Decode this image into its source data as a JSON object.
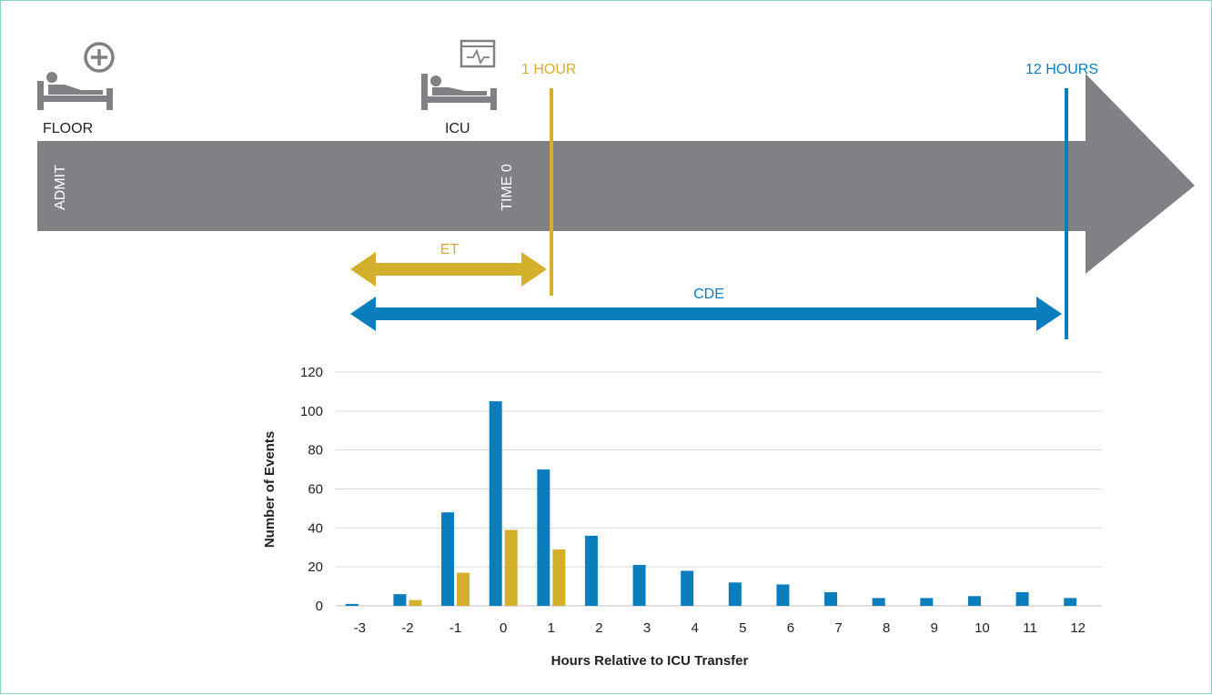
{
  "timeline": {
    "floor_label": "FLOOR",
    "icu_label": "ICU",
    "admit_label": "ADMIT",
    "time0_label": "TIME 0",
    "one_hour_label": "1 HOUR",
    "twelve_hours_label": "12 HOURS",
    "et_label": "ET",
    "cde_label": "CDE",
    "icons": {
      "floor": "hospital-bed-plus-icon",
      "icu": "hospital-bed-monitor-icon"
    }
  },
  "colors": {
    "arrow": "#808184",
    "et": "#d4af2c",
    "cde": "#0a7dbd",
    "text": "#222222",
    "grid": "#d9d9d9",
    "icon": "#808184"
  },
  "chart_data": {
    "type": "bar",
    "categories": [
      "-3",
      "-2",
      "-1",
      "0",
      "1",
      "2",
      "3",
      "4",
      "5",
      "6",
      "7",
      "8",
      "9",
      "10",
      "11",
      "12"
    ],
    "series": [
      {
        "name": "",
        "color": "#0a7dbd",
        "values": [
          1,
          6,
          48,
          105,
          70,
          36,
          21,
          18,
          12,
          11,
          7,
          4,
          4,
          5,
          7,
          4
        ]
      },
      {
        "name": "",
        "color": "#d4af2c",
        "values": [
          0,
          3,
          17,
          39,
          29,
          0,
          0,
          0,
          0,
          0,
          0,
          0,
          0,
          0,
          0,
          0
        ]
      }
    ],
    "title": "",
    "xlabel": "Hours Relative to ICU Transfer",
    "ylabel": "Number of Events",
    "ylim": [
      0,
      120
    ],
    "yticks": [
      0,
      20,
      40,
      60,
      80,
      100,
      120
    ],
    "grid": true
  }
}
